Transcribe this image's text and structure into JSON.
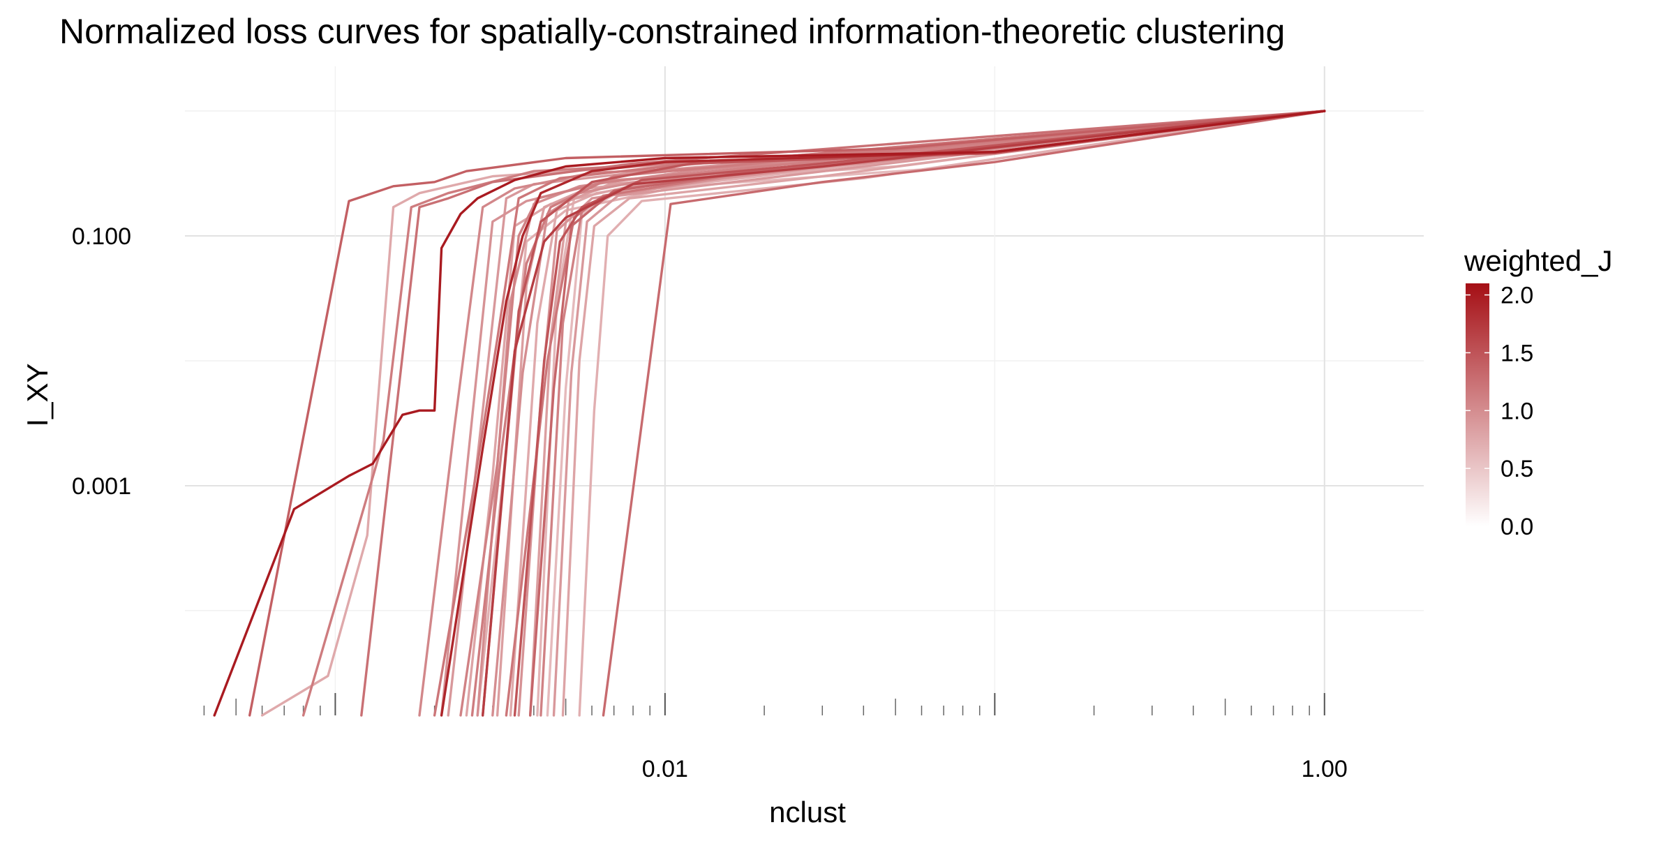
{
  "chart_data": {
    "type": "line",
    "title": "Normalized loss curves for spatially-constrained information-theoretic clustering",
    "xlabel": "nclust",
    "ylabel": "I_XY",
    "x_scale": "log10",
    "y_scale": "log10",
    "xlim": [
      0.00035,
      2.0
    ],
    "ylim": [
      1.45e-05,
      1.55
    ],
    "x_ticks": [
      {
        "value": 0.01,
        "label": "0.01"
      },
      {
        "value": 1.0,
        "label": "1.00"
      }
    ],
    "y_ticks": [
      {
        "value": 0.1,
        "label": "0.100"
      },
      {
        "value": 0.001,
        "label": "0.001"
      }
    ],
    "grid": true,
    "legend": {
      "title": "weighted_J",
      "position": "right",
      "type": "colorbar",
      "range": [
        0.0,
        2.1
      ],
      "ticks": [
        {
          "value": 2.0,
          "label": "2.0"
        },
        {
          "value": 1.5,
          "label": "1.5"
        },
        {
          "value": 1.0,
          "label": "1.0"
        },
        {
          "value": 0.5,
          "label": "0.5"
        },
        {
          "value": 0.0,
          "label": "0.0"
        }
      ],
      "color_low": "#ffffff",
      "color_high": "#a50f15"
    },
    "series": [
      {
        "weighted_J": 2.0,
        "points": [
          [
            0.00043,
            1.45e-05
          ],
          [
            0.00075,
            0.00065
          ],
          [
            0.0011,
            0.0012
          ],
          [
            0.0013,
            0.0015
          ],
          [
            0.0016,
            0.0037
          ],
          [
            0.0018,
            0.004
          ],
          [
            0.002,
            0.004
          ],
          [
            0.0021,
            0.08
          ],
          [
            0.0024,
            0.15
          ],
          [
            0.0027,
            0.2
          ],
          [
            0.0035,
            0.28
          ],
          [
            0.005,
            0.36
          ],
          [
            0.01,
            0.42
          ],
          [
            0.1,
            0.47
          ],
          [
            1.0,
            1.0
          ]
        ]
      },
      {
        "weighted_J": 1.9,
        "points": [
          [
            0.0021,
            1.45e-05
          ],
          [
            0.0028,
            0.002
          ],
          [
            0.0033,
            0.03
          ],
          [
            0.0037,
            0.1
          ],
          [
            0.0042,
            0.22
          ],
          [
            0.006,
            0.33
          ],
          [
            0.01,
            0.39
          ],
          [
            0.1,
            0.47
          ],
          [
            1.0,
            1.0
          ]
        ]
      },
      {
        "weighted_J": 1.7,
        "points": [
          [
            0.0028,
            1.45e-05
          ],
          [
            0.0035,
            0.012
          ],
          [
            0.0043,
            0.09
          ],
          [
            0.005,
            0.14
          ],
          [
            0.008,
            0.26
          ],
          [
            0.03,
            0.36
          ],
          [
            1.0,
            1.0
          ]
        ]
      },
      {
        "weighted_J": 1.5,
        "points": [
          [
            0.0028,
            1.45e-05
          ],
          [
            0.0036,
            0.025
          ],
          [
            0.0042,
            0.13
          ],
          [
            0.006,
            0.27
          ],
          [
            0.012,
            0.38
          ],
          [
            0.1,
            0.46
          ],
          [
            1.0,
            1.0
          ]
        ]
      },
      {
        "weighted_J": 1.5,
        "points": [
          [
            0.0035,
            1.45e-05
          ],
          [
            0.0043,
            0.01
          ],
          [
            0.0048,
            0.09
          ],
          [
            0.0056,
            0.17
          ],
          [
            0.0085,
            0.28
          ],
          [
            0.03,
            0.38
          ],
          [
            1.0,
            1.0
          ]
        ]
      },
      {
        "weighted_J": 1.4,
        "points": [
          [
            0.00055,
            1.45e-05
          ],
          [
            0.0011,
            0.19
          ],
          [
            0.0015,
            0.25
          ],
          [
            0.002,
            0.27
          ],
          [
            0.0025,
            0.33
          ],
          [
            0.005,
            0.42
          ],
          [
            0.05,
            0.5
          ],
          [
            1.0,
            1.0
          ]
        ]
      },
      {
        "weighted_J": 1.35,
        "points": [
          [
            0.0039,
            1.45e-05
          ],
          [
            0.0046,
            0.006
          ],
          [
            0.0052,
            0.12
          ],
          [
            0.007,
            0.23
          ],
          [
            0.02,
            0.34
          ],
          [
            1.0,
            1.0
          ]
        ]
      },
      {
        "weighted_J": 1.3,
        "points": [
          [
            0.0065,
            1.45e-05
          ],
          [
            0.0104,
            0.18
          ],
          [
            0.03,
            0.27
          ],
          [
            0.1,
            0.39
          ],
          [
            1.0,
            1.0
          ]
        ]
      },
      {
        "weighted_J": 1.25,
        "points": [
          [
            0.0012,
            1.45e-05
          ],
          [
            0.0018,
            0.17
          ],
          [
            0.0022,
            0.2
          ],
          [
            0.003,
            0.27
          ],
          [
            0.008,
            0.38
          ],
          [
            1.0,
            1.0
          ]
        ]
      },
      {
        "weighted_J": 1.2,
        "points": [
          [
            0.002,
            1.45e-05
          ],
          [
            0.0026,
            0.0008
          ],
          [
            0.0031,
            0.015
          ],
          [
            0.0036,
            0.2
          ],
          [
            0.0048,
            0.29
          ],
          [
            0.01,
            0.36
          ],
          [
            1.0,
            1.0
          ]
        ]
      },
      {
        "weighted_J": 1.2,
        "points": [
          [
            0.0033,
            1.45e-05
          ],
          [
            0.0044,
            0.01
          ],
          [
            0.0053,
            0.14
          ],
          [
            0.0065,
            0.21
          ],
          [
            0.015,
            0.3
          ],
          [
            1.0,
            1.0
          ]
        ]
      },
      {
        "weighted_J": 1.15,
        "points": [
          [
            0.0008,
            1.45e-05
          ],
          [
            0.0014,
            0.0023
          ],
          [
            0.0017,
            0.17
          ],
          [
            0.0022,
            0.22
          ],
          [
            0.004,
            0.33
          ],
          [
            0.03,
            0.44
          ],
          [
            1.0,
            1.0
          ]
        ]
      },
      {
        "weighted_J": 1.15,
        "points": [
          [
            0.0026,
            1.45e-05
          ],
          [
            0.0032,
            0.002
          ],
          [
            0.0038,
            0.06
          ],
          [
            0.0045,
            0.17
          ],
          [
            0.007,
            0.3
          ],
          [
            1.0,
            1.0
          ]
        ]
      },
      {
        "weighted_J": 1.1,
        "points": [
          [
            0.0024,
            1.45e-05
          ],
          [
            0.0031,
            0.0015
          ],
          [
            0.0036,
            0.1
          ],
          [
            0.0041,
            0.2
          ],
          [
            0.0065,
            0.27
          ],
          [
            0.02,
            0.36
          ],
          [
            1.0,
            1.0
          ]
        ]
      },
      {
        "weighted_J": 1.1,
        "points": [
          [
            0.0042,
            1.45e-05
          ],
          [
            0.0049,
            0.02
          ],
          [
            0.0056,
            0.16
          ],
          [
            0.0075,
            0.24
          ],
          [
            0.02,
            0.33
          ],
          [
            1.0,
            1.0
          ]
        ]
      },
      {
        "weighted_J": 1.05,
        "points": [
          [
            0.0018,
            1.45e-05
          ],
          [
            0.0023,
            0.003
          ],
          [
            0.0028,
            0.17
          ],
          [
            0.0035,
            0.24
          ],
          [
            0.006,
            0.32
          ],
          [
            0.05,
            0.41
          ],
          [
            1.0,
            1.0
          ]
        ]
      },
      {
        "weighted_J": 1.0,
        "points": [
          [
            0.0027,
            1.45e-05
          ],
          [
            0.0034,
            0.03
          ],
          [
            0.004,
            0.18
          ],
          [
            0.0055,
            0.25
          ],
          [
            0.012,
            0.33
          ],
          [
            1.0,
            1.0
          ]
        ]
      },
      {
        "weighted_J": 1.0,
        "points": [
          [
            0.003,
            1.45e-05
          ],
          [
            0.0037,
            0.008
          ],
          [
            0.0044,
            0.15
          ],
          [
            0.0055,
            0.22
          ],
          [
            0.01,
            0.3
          ],
          [
            1.0,
            1.0
          ]
        ]
      },
      {
        "weighted_J": 0.95,
        "points": [
          [
            0.0021,
            1.45e-05
          ],
          [
            0.0026,
            0.0035
          ],
          [
            0.003,
            0.13
          ],
          [
            0.0038,
            0.19
          ],
          [
            0.007,
            0.28
          ],
          [
            0.04,
            0.38
          ],
          [
            1.0,
            1.0
          ]
        ]
      },
      {
        "weighted_J": 0.95,
        "points": [
          [
            0.0036,
            1.45e-05
          ],
          [
            0.0042,
            0.005
          ],
          [
            0.0047,
            0.11
          ],
          [
            0.006,
            0.2
          ],
          [
            0.015,
            0.29
          ],
          [
            1.0,
            1.0
          ]
        ]
      },
      {
        "weighted_J": 0.9,
        "points": [
          [
            0.0022,
            1.45e-05
          ],
          [
            0.0028,
            0.004
          ],
          [
            0.0033,
            0.2
          ],
          [
            0.004,
            0.26
          ],
          [
            0.008,
            0.32
          ],
          [
            1.0,
            1.0
          ]
        ]
      },
      {
        "weighted_J": 0.9,
        "points": [
          [
            0.0046,
            1.45e-05
          ],
          [
            0.0052,
            0.008
          ],
          [
            0.0058,
            0.13
          ],
          [
            0.0072,
            0.21
          ],
          [
            0.025,
            0.31
          ],
          [
            1.0,
            1.0
          ]
        ]
      },
      {
        "weighted_J": 0.85,
        "points": [
          [
            0.0031,
            1.45e-05
          ],
          [
            0.0038,
            0.04
          ],
          [
            0.0043,
            0.17
          ],
          [
            0.0058,
            0.24
          ],
          [
            0.02,
            0.34
          ],
          [
            1.0,
            1.0
          ]
        ]
      },
      {
        "weighted_J": 0.85,
        "points": [
          [
            0.0039,
            1.45e-05
          ],
          [
            0.0045,
            0.015
          ],
          [
            0.0051,
            0.19
          ],
          [
            0.0068,
            0.26
          ],
          [
            0.03,
            0.36
          ],
          [
            1.0,
            1.0
          ]
        ]
      },
      {
        "weighted_J": 0.8,
        "points": [
          [
            0.0025,
            1.45e-05
          ],
          [
            0.003,
            0.0012
          ],
          [
            0.0035,
            0.12
          ],
          [
            0.0045,
            0.18
          ],
          [
            0.009,
            0.27
          ],
          [
            1.0,
            1.0
          ]
        ]
      },
      {
        "weighted_J": 0.8,
        "points": [
          [
            0.0049,
            1.45e-05
          ],
          [
            0.0055,
            0.01
          ],
          [
            0.0061,
            0.12
          ],
          [
            0.0078,
            0.2
          ],
          [
            0.03,
            0.3
          ],
          [
            1.0,
            1.0
          ]
        ]
      },
      {
        "weighted_J": 0.75,
        "points": [
          [
            0.0006,
            1.45e-05
          ],
          [
            0.00095,
            3e-05
          ],
          [
            0.00125,
            0.0004
          ],
          [
            0.0015,
            0.17
          ],
          [
            0.0018,
            0.22
          ],
          [
            0.003,
            0.3
          ],
          [
            0.02,
            0.42
          ],
          [
            1.0,
            1.0
          ]
        ]
      },
      {
        "weighted_J": 0.75,
        "points": [
          [
            0.0034,
            1.45e-05
          ],
          [
            0.0041,
            0.02
          ],
          [
            0.0047,
            0.16
          ],
          [
            0.0062,
            0.22
          ],
          [
            0.014,
            0.31
          ],
          [
            1.0,
            1.0
          ]
        ]
      },
      {
        "weighted_J": 0.7,
        "points": [
          [
            0.0055,
            1.45e-05
          ],
          [
            0.0061,
            0.004
          ],
          [
            0.0067,
            0.1
          ],
          [
            0.0085,
            0.19
          ],
          [
            0.04,
            0.29
          ],
          [
            1.0,
            1.0
          ]
        ]
      },
      {
        "weighted_J": 0.7,
        "points": [
          [
            0.0027,
            1.45e-05
          ],
          [
            0.0033,
            0.002
          ],
          [
            0.0038,
            0.09
          ],
          [
            0.005,
            0.16
          ],
          [
            0.012,
            0.26
          ],
          [
            1.0,
            1.0
          ]
        ]
      },
      {
        "weighted_J": 0.65,
        "points": [
          [
            0.0041,
            1.45e-05
          ],
          [
            0.0047,
            0.03
          ],
          [
            0.0053,
            0.2
          ],
          [
            0.007,
            0.26
          ],
          [
            0.05,
            0.36
          ],
          [
            1.0,
            1.0
          ]
        ]
      },
      {
        "weighted_J": 0.6,
        "points": [
          [
            0.0044,
            1.45e-05
          ],
          [
            0.005,
            0.006
          ],
          [
            0.0056,
            0.15
          ],
          [
            0.0073,
            0.23
          ],
          [
            0.06,
            0.34
          ],
          [
            1.0,
            1.0
          ]
        ]
      }
    ]
  }
}
